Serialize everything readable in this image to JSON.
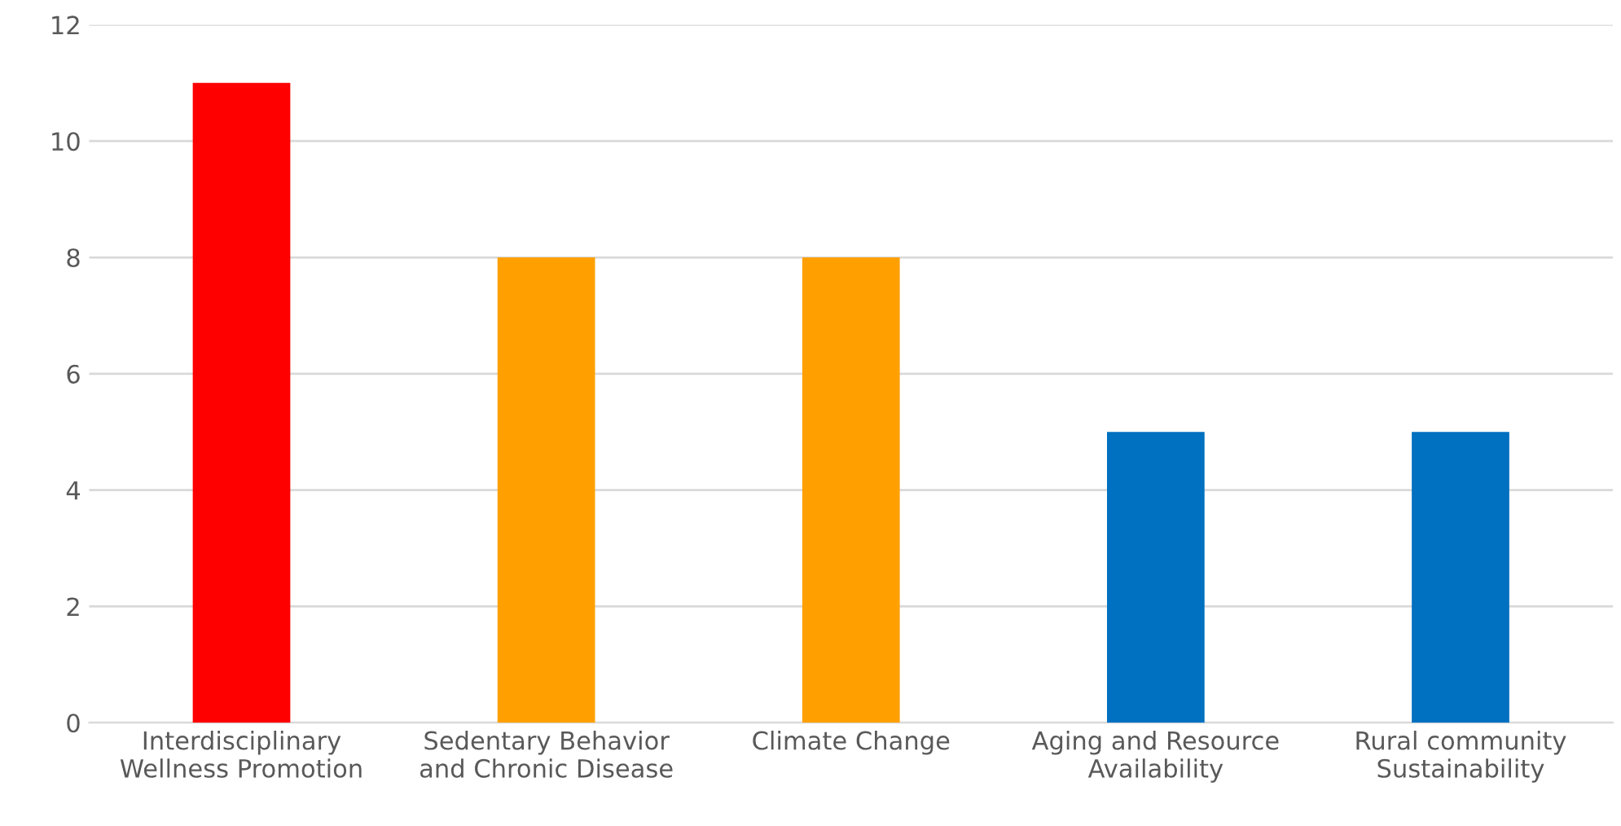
{
  "chart_data": {
    "type": "bar",
    "categories": [
      "Interdisciplinary\nWellness Promotion",
      "Sedentary Behavior\nand Chronic Disease",
      "Climate Change",
      "Aging and Resource\nAvailability",
      "Rural community\nSustainability"
    ],
    "values": [
      11,
      8,
      8,
      5,
      5
    ],
    "colors": [
      "#ff0000",
      "#ffa000",
      "#ffa000",
      "#0070c0",
      "#0070c0"
    ],
    "ylim": [
      0,
      12
    ],
    "yticks": [
      0,
      2,
      4,
      6,
      8,
      10,
      12
    ],
    "grid": "y",
    "legend": false
  }
}
